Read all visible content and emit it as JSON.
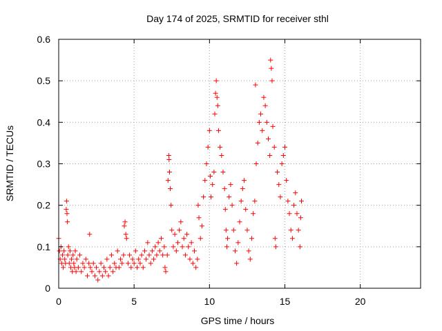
{
  "chart_data": {
    "type": "scatter",
    "title": "Day 174 of 2025, SRMTID for receiver sthl",
    "xlabel": "GPS time / hours",
    "ylabel": "SRMTID / TECUs",
    "xlim": [
      0,
      24
    ],
    "ylim": [
      0,
      0.6
    ],
    "xticks": [
      0,
      5,
      10,
      15,
      20
    ],
    "xtick_labels": [
      "0",
      "5",
      "10",
      "15",
      "20"
    ],
    "yticks": [
      0,
      0.1,
      0.2,
      0.3,
      0.4,
      0.5,
      0.6
    ],
    "ytick_labels": [
      "0",
      "0.1",
      "0.2",
      "0.3",
      "0.4",
      "0.5",
      "0.6"
    ],
    "grid": true,
    "marker": "plus",
    "color": "#ff0000",
    "series": [
      {
        "name": "SRMTID",
        "points": [
          [
            0.0,
            0.12
          ],
          [
            0.05,
            0.09
          ],
          [
            0.1,
            0.07
          ],
          [
            0.15,
            0.1
          ],
          [
            0.2,
            0.06
          ],
          [
            0.25,
            0.08
          ],
          [
            0.3,
            0.05
          ],
          [
            0.35,
            0.09
          ],
          [
            0.4,
            0.07
          ],
          [
            0.45,
            0.06
          ],
          [
            0.5,
            0.19
          ],
          [
            0.52,
            0.21
          ],
          [
            0.55,
            0.18
          ],
          [
            0.58,
            0.16
          ],
          [
            0.6,
            0.08
          ],
          [
            0.65,
            0.1
          ],
          [
            0.7,
            0.06
          ],
          [
            0.75,
            0.09
          ],
          [
            0.8,
            0.05
          ],
          [
            0.85,
            0.07
          ],
          [
            0.9,
            0.04
          ],
          [
            0.95,
            0.08
          ],
          [
            1.0,
            0.06
          ],
          [
            1.05,
            0.05
          ],
          [
            1.1,
            0.09
          ],
          [
            1.15,
            0.04
          ],
          [
            1.2,
            0.07
          ],
          [
            1.3,
            0.05
          ],
          [
            1.4,
            0.08
          ],
          [
            1.5,
            0.04
          ],
          [
            1.6,
            0.06
          ],
          [
            1.7,
            0.05
          ],
          [
            1.8,
            0.07
          ],
          [
            1.9,
            0.03
          ],
          [
            2.0,
            0.06
          ],
          [
            2.05,
            0.13
          ],
          [
            2.1,
            0.05
          ],
          [
            2.2,
            0.04
          ],
          [
            2.3,
            0.06
          ],
          [
            2.4,
            0.03
          ],
          [
            2.5,
            0.05
          ],
          [
            2.6,
            0.02
          ],
          [
            2.7,
            0.04
          ],
          [
            2.8,
            0.06
          ],
          [
            2.9,
            0.03
          ],
          [
            3.0,
            0.05
          ],
          [
            3.1,
            0.04
          ],
          [
            3.2,
            0.07
          ],
          [
            3.3,
            0.03
          ],
          [
            3.4,
            0.05
          ],
          [
            3.5,
            0.08
          ],
          [
            3.6,
            0.04
          ],
          [
            3.7,
            0.06
          ],
          [
            3.8,
            0.05
          ],
          [
            3.9,
            0.09
          ],
          [
            4.0,
            0.05
          ],
          [
            4.1,
            0.07
          ],
          [
            4.2,
            0.06
          ],
          [
            4.3,
            0.08
          ],
          [
            4.35,
            0.15
          ],
          [
            4.4,
            0.16
          ],
          [
            4.45,
            0.13
          ],
          [
            4.5,
            0.12
          ],
          [
            4.6,
            0.06
          ],
          [
            4.7,
            0.08
          ],
          [
            4.8,
            0.05
          ],
          [
            4.9,
            0.07
          ],
          [
            5.0,
            0.06
          ],
          [
            5.1,
            0.09
          ],
          [
            5.2,
            0.05
          ],
          [
            5.3,
            0.07
          ],
          [
            5.4,
            0.06
          ],
          [
            5.5,
            0.08
          ],
          [
            5.6,
            0.05
          ],
          [
            5.7,
            0.09
          ],
          [
            5.8,
            0.07
          ],
          [
            5.9,
            0.11
          ],
          [
            6.0,
            0.08
          ],
          [
            6.1,
            0.06
          ],
          [
            6.2,
            0.09
          ],
          [
            6.3,
            0.07
          ],
          [
            6.4,
            0.1
          ],
          [
            6.5,
            0.08
          ],
          [
            6.6,
            0.11
          ],
          [
            6.7,
            0.09
          ],
          [
            6.8,
            0.12
          ],
          [
            6.9,
            0.08
          ],
          [
            7.0,
            0.1
          ],
          [
            7.05,
            0.05
          ],
          [
            7.1,
            0.04
          ],
          [
            7.2,
            0.08
          ],
          [
            7.25,
            0.26
          ],
          [
            7.3,
            0.32
          ],
          [
            7.32,
            0.31
          ],
          [
            7.35,
            0.28
          ],
          [
            7.4,
            0.24
          ],
          [
            7.45,
            0.2
          ],
          [
            7.5,
            0.14
          ],
          [
            7.6,
            0.1
          ],
          [
            7.7,
            0.13
          ],
          [
            7.8,
            0.09
          ],
          [
            7.9,
            0.11
          ],
          [
            8.0,
            0.14
          ],
          [
            8.1,
            0.16
          ],
          [
            8.2,
            0.1
          ],
          [
            8.3,
            0.12
          ],
          [
            8.4,
            0.08
          ],
          [
            8.5,
            0.13
          ],
          [
            8.6,
            0.1
          ],
          [
            8.7,
            0.07
          ],
          [
            8.8,
            0.11
          ],
          [
            8.9,
            0.06
          ],
          [
            9.0,
            0.09
          ],
          [
            9.1,
            0.05
          ],
          [
            9.2,
            0.07
          ],
          [
            9.25,
            0.2
          ],
          [
            9.3,
            0.17
          ],
          [
            9.4,
            0.12
          ],
          [
            9.5,
            0.15
          ],
          [
            9.6,
            0.22
          ],
          [
            9.7,
            0.26
          ],
          [
            9.8,
            0.3
          ],
          [
            9.9,
            0.34
          ],
          [
            10.0,
            0.38
          ],
          [
            10.05,
            0.27
          ],
          [
            10.1,
            0.22
          ],
          [
            10.2,
            0.25
          ],
          [
            10.3,
            0.28
          ],
          [
            10.35,
            0.42
          ],
          [
            10.4,
            0.47
          ],
          [
            10.45,
            0.5
          ],
          [
            10.5,
            0.46
          ],
          [
            10.55,
            0.44
          ],
          [
            10.6,
            0.38
          ],
          [
            10.7,
            0.34
          ],
          [
            10.8,
            0.32
          ],
          [
            10.9,
            0.28
          ],
          [
            11.0,
            0.24
          ],
          [
            11.05,
            0.19
          ],
          [
            11.1,
            0.14
          ],
          [
            11.15,
            0.1
          ],
          [
            11.2,
            0.12
          ],
          [
            11.3,
            0.22
          ],
          [
            11.4,
            0.25
          ],
          [
            11.5,
            0.2
          ],
          [
            11.6,
            0.14
          ],
          [
            11.7,
            0.09
          ],
          [
            11.8,
            0.06
          ],
          [
            11.9,
            0.11
          ],
          [
            12.0,
            0.16
          ],
          [
            12.1,
            0.21
          ],
          [
            12.2,
            0.24
          ],
          [
            12.3,
            0.26
          ],
          [
            12.4,
            0.19
          ],
          [
            12.5,
            0.14
          ],
          [
            12.6,
            0.09
          ],
          [
            12.7,
            0.07
          ],
          [
            12.8,
            0.12
          ],
          [
            12.9,
            0.18
          ],
          [
            13.0,
            0.21
          ],
          [
            13.05,
            0.49
          ],
          [
            13.1,
            0.3
          ],
          [
            13.2,
            0.35
          ],
          [
            13.3,
            0.4
          ],
          [
            13.4,
            0.42
          ],
          [
            13.5,
            0.38
          ],
          [
            13.6,
            0.46
          ],
          [
            13.7,
            0.44
          ],
          [
            13.8,
            0.4
          ],
          [
            13.9,
            0.36
          ],
          [
            14.0,
            0.32
          ],
          [
            14.05,
            0.55
          ],
          [
            14.1,
            0.53
          ],
          [
            14.15,
            0.5
          ],
          [
            14.2,
            0.39
          ],
          [
            14.3,
            0.34
          ],
          [
            14.35,
            0.12
          ],
          [
            14.4,
            0.1
          ],
          [
            14.5,
            0.28
          ],
          [
            14.6,
            0.25
          ],
          [
            14.7,
            0.22
          ],
          [
            14.8,
            0.3
          ],
          [
            14.9,
            0.32
          ],
          [
            15.0,
            0.34
          ],
          [
            15.1,
            0.26
          ],
          [
            15.2,
            0.21
          ],
          [
            15.3,
            0.18
          ],
          [
            15.4,
            0.14
          ],
          [
            15.5,
            0.12
          ],
          [
            15.6,
            0.2
          ],
          [
            15.7,
            0.23
          ],
          [
            15.8,
            0.18
          ],
          [
            15.9,
            0.14
          ],
          [
            16.0,
            0.1
          ],
          [
            16.05,
            0.17
          ],
          [
            16.1,
            0.21
          ]
        ]
      }
    ]
  }
}
